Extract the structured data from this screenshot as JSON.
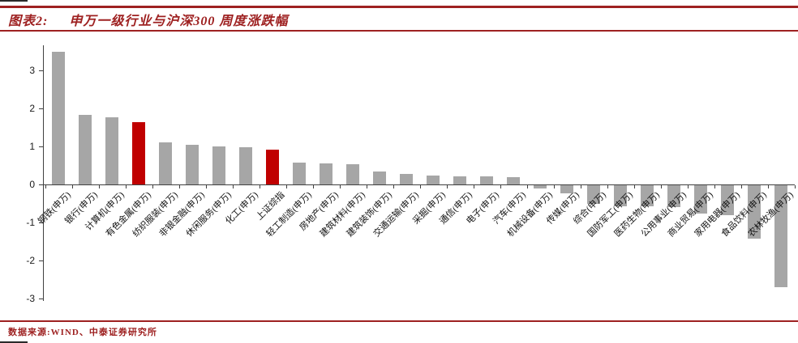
{
  "header": {
    "figure_label": "图表2:",
    "figure_title": "申万一级行业与沪深300 周度涨跌幅"
  },
  "footer": {
    "source_label": "数据来源:WIND、中泰证券研究所"
  },
  "colors": {
    "accent_red": "#c00000",
    "bar_gray": "#a6a6a6",
    "heading_red": "#9e2121",
    "axis_color": "#404040"
  },
  "chart_data": {
    "type": "bar",
    "title": "申万一级行业与沪深300 周度涨跌幅",
    "xlabel": "",
    "ylabel": "",
    "unit": "%",
    "grid": false,
    "legend": null,
    "ylim": [
      -3,
      3.6
    ],
    "yticks": [
      3,
      2,
      1,
      0,
      -1,
      -2,
      -3
    ],
    "categories": [
      "钢铁(申万)",
      "银行(申万)",
      "计算机(申万)",
      "有色金属(申万)",
      "纺织服装(申万)",
      "非银金融(申万)",
      "休闲服务(申万)",
      "化工(申万)",
      "上证综指",
      "轻工制造(申万)",
      "房地产(申万)",
      "建筑材料(申万)",
      "建筑装饰(申万)",
      "交通运输(申万)",
      "采掘(申万)",
      "通信(申万)",
      "电子(申万)",
      "汽车(申万)",
      "机械设备(申万)",
      "传媒(申万)",
      "综合(申万)",
      "国防军工(申万)",
      "医药生物(申万)",
      "公用事业(申万)",
      "商业贸易(申万)",
      "家用电器(申万)",
      "食品饮料(申万)",
      "农林牧渔(申万)"
    ],
    "values": [
      3.48,
      1.82,
      1.77,
      1.64,
      1.1,
      1.05,
      0.99,
      0.97,
      0.92,
      0.57,
      0.55,
      0.53,
      0.35,
      0.28,
      0.23,
      0.22,
      0.21,
      0.2,
      -0.08,
      -0.22,
      -0.48,
      -0.55,
      -0.56,
      -0.58,
      -0.74,
      -0.78,
      -1.4,
      -2.68
    ],
    "highlight_indices": [
      3,
      8
    ],
    "highlight_color": "#c00000",
    "default_color": "#a6a6a6"
  }
}
